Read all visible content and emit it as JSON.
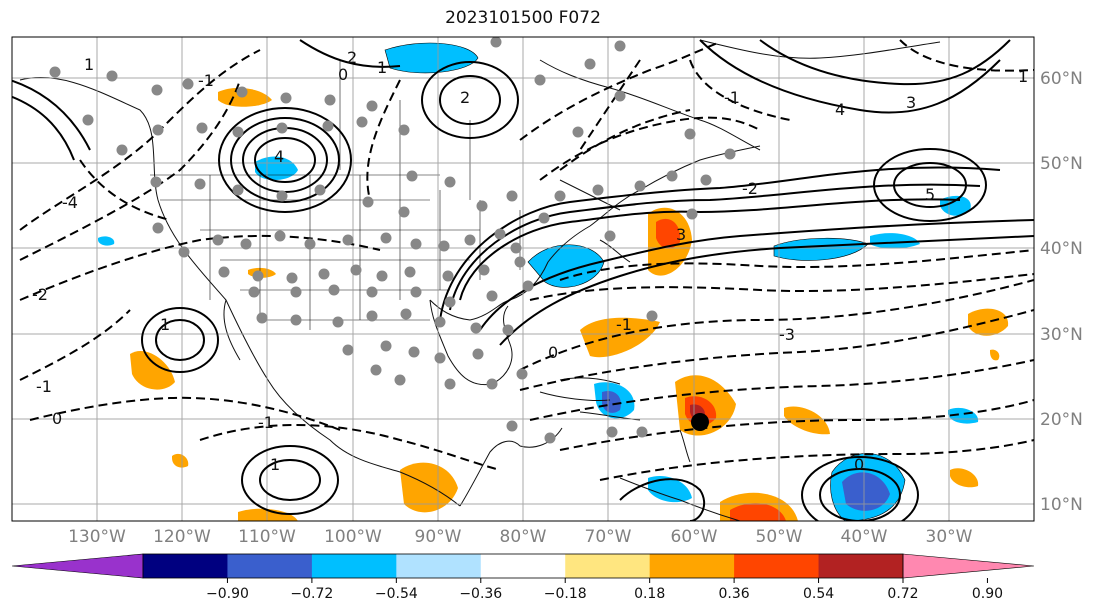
{
  "title": "2023101500 F072",
  "lon_labels": [
    "130°W",
    "120°W",
    "110°W",
    "100°W",
    "90°W",
    "80°W",
    "70°W",
    "60°W",
    "50°W",
    "40°W",
    "30°W"
  ],
  "lat_labels": [
    "60°N",
    "50°N",
    "40°N",
    "30°N",
    "20°N",
    "10°N"
  ],
  "colorbar": {
    "colors": [
      "#9932cc",
      "#000080",
      "#3a5fcd",
      "#00bfff",
      "#b0e2ff",
      "#ffffff",
      "#ffe680",
      "#ffa500",
      "#ff4500",
      "#b22222",
      "#ff88b0"
    ],
    "tick_labels": [
      "−0.90",
      "−0.72",
      "−0.54",
      "−0.36",
      "−0.18",
      "0.18",
      "0.36",
      "0.54",
      "0.72",
      "0.90"
    ]
  },
  "contour_labels": [
    "0",
    "1",
    "2",
    "-1",
    "-2",
    "2",
    "3",
    "4",
    "5",
    "-3",
    "-4",
    "0",
    "-1",
    "-2",
    "-1",
    "0",
    "1",
    "-1",
    "4",
    "3",
    "1",
    "0",
    "1",
    "1",
    "-1"
  ],
  "cyclone_marker": "black-dot"
}
